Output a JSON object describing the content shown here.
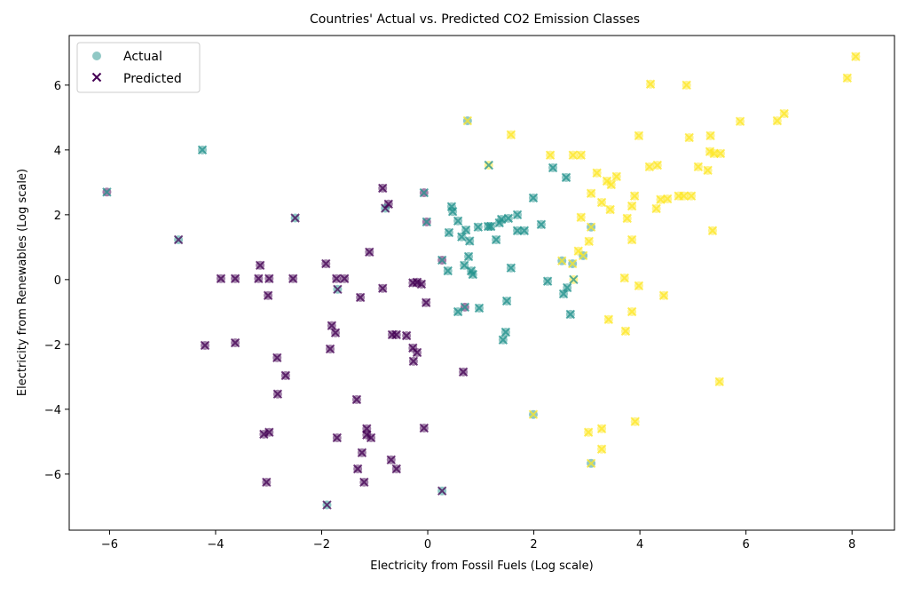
{
  "chart_data": {
    "type": "scatter",
    "title": "Countries' Actual vs. Predicted CO2 Emission Classes",
    "xlabel": "Electricity from Fossil Fuels (Log scale)",
    "ylabel": "Electricity from Renewables (Log scale)",
    "xlim": [
      -6.76,
      8.8
    ],
    "ylim": [
      -7.73,
      7.53
    ],
    "xticks": [
      -6,
      -4,
      -2,
      0,
      2,
      4,
      6,
      8
    ],
    "yticks": [
      -6,
      -4,
      -2,
      0,
      2,
      4,
      6
    ],
    "grid": false,
    "legend": {
      "placement": "top-left",
      "entries": [
        {
          "label": "Actual",
          "marker": "circle"
        },
        {
          "label": "Predicted",
          "marker": "x"
        }
      ]
    },
    "class_colors": [
      "#440154",
      "#21918c",
      "#fde725"
    ],
    "point_fields": [
      "x",
      "y",
      "actual_class",
      "predicted_class"
    ],
    "points": [
      [
        -4.2,
        -2.03,
        0,
        0
      ],
      [
        -3.9,
        0.03,
        0,
        0
      ],
      [
        -3.63,
        0.03,
        0,
        0
      ],
      [
        -3.63,
        -1.95,
        0,
        0
      ],
      [
        -3.16,
        0.44,
        0,
        0
      ],
      [
        -3.19,
        0.03,
        0,
        0
      ],
      [
        -2.99,
        0.03,
        0,
        0
      ],
      [
        -3.01,
        -0.49,
        0,
        0
      ],
      [
        -2.54,
        0.03,
        0,
        0
      ],
      [
        -1.92,
        0.49,
        0,
        0
      ],
      [
        -1.72,
        0.03,
        0,
        0
      ],
      [
        -1.57,
        0.03,
        0,
        0
      ],
      [
        -1.1,
        0.85,
        0,
        0
      ],
      [
        -0.85,
        2.82,
        0,
        0
      ],
      [
        -0.74,
        2.33,
        0,
        0
      ],
      [
        -1.27,
        -0.55,
        0,
        0
      ],
      [
        -0.85,
        -0.27,
        0,
        0
      ],
      [
        -1.81,
        -1.42,
        0,
        0
      ],
      [
        -1.74,
        -1.64,
        0,
        0
      ],
      [
        -1.84,
        -2.14,
        0,
        0
      ],
      [
        -0.67,
        -1.7,
        0,
        0
      ],
      [
        -0.59,
        -1.7,
        0,
        0
      ],
      [
        -0.4,
        -1.73,
        0,
        0
      ],
      [
        -0.28,
        -2.11,
        0,
        0
      ],
      [
        -0.2,
        -2.25,
        0,
        0
      ],
      [
        -0.27,
        -2.52,
        0,
        0
      ],
      [
        -0.2,
        -0.08,
        0,
        0
      ],
      [
        -0.12,
        -0.14,
        0,
        0
      ],
      [
        -0.28,
        -0.1,
        0,
        0
      ],
      [
        -0.03,
        -0.71,
        0,
        0
      ],
      [
        -2.84,
        -2.41,
        0,
        0
      ],
      [
        -2.68,
        -2.96,
        0,
        0
      ],
      [
        -2.83,
        -3.53,
        0,
        0
      ],
      [
        -3.09,
        -4.77,
        0,
        0
      ],
      [
        -2.99,
        -4.71,
        0,
        0
      ],
      [
        -3.04,
        -6.25,
        0,
        0
      ],
      [
        -1.71,
        -4.88,
        0,
        0
      ],
      [
        -1.34,
        -3.7,
        0,
        0
      ],
      [
        -1.15,
        -4.6,
        0,
        0
      ],
      [
        -1.15,
        -4.79,
        0,
        0
      ],
      [
        -1.07,
        -4.88,
        0,
        0
      ],
      [
        -1.24,
        -5.34,
        0,
        0
      ],
      [
        -1.32,
        -5.84,
        0,
        0
      ],
      [
        -1.2,
        -6.25,
        0,
        0
      ],
      [
        -0.69,
        -5.56,
        0,
        0
      ],
      [
        -0.59,
        -5.84,
        0,
        0
      ],
      [
        -0.07,
        -4.58,
        0,
        0
      ],
      [
        0.67,
        -2.85,
        0,
        0
      ],
      [
        -4.7,
        1.23,
        1,
        0
      ],
      [
        -2.5,
        1.9,
        1,
        0
      ],
      [
        -1.7,
        -0.3,
        1,
        0
      ],
      [
        -1.9,
        -6.95,
        1,
        0
      ],
      [
        0.27,
        -6.52,
        1,
        0
      ],
      [
        -0.8,
        2.2,
        1,
        0
      ],
      [
        -0.07,
        2.68,
        0,
        1
      ],
      [
        -0.02,
        1.78,
        0,
        1
      ],
      [
        0.27,
        0.6,
        0,
        1
      ],
      [
        0.7,
        -0.85,
        0,
        1
      ],
      [
        -6.05,
        2.7,
        0,
        1
      ],
      [
        -4.25,
        4.0,
        1,
        1
      ],
      [
        0.45,
        2.25,
        1,
        1
      ],
      [
        0.47,
        2.1,
        1,
        1
      ],
      [
        0.57,
        1.81,
        1,
        1
      ],
      [
        0.4,
        1.45,
        1,
        1
      ],
      [
        0.64,
        1.32,
        1,
        1
      ],
      [
        0.72,
        1.53,
        1,
        1
      ],
      [
        0.79,
        1.19,
        1,
        1
      ],
      [
        0.95,
        1.62,
        1,
        1
      ],
      [
        1.14,
        1.64,
        1,
        1
      ],
      [
        1.19,
        1.64,
        1,
        1
      ],
      [
        1.35,
        1.75,
        1,
        1
      ],
      [
        1.39,
        1.86,
        1,
        1
      ],
      [
        1.52,
        1.89,
        1,
        1
      ],
      [
        1.69,
        2.0,
        1,
        1
      ],
      [
        1.29,
        1.23,
        1,
        1
      ],
      [
        1.69,
        1.51,
        1,
        1
      ],
      [
        1.82,
        1.51,
        1,
        1
      ],
      [
        2.14,
        1.7,
        1,
        1
      ],
      [
        1.99,
        2.52,
        1,
        1
      ],
      [
        2.36,
        3.45,
        1,
        1
      ],
      [
        2.61,
        3.15,
        1,
        1
      ],
      [
        0.77,
        0.71,
        1,
        1
      ],
      [
        0.69,
        0.44,
        1,
        1
      ],
      [
        0.82,
        0.27,
        1,
        1
      ],
      [
        0.85,
        0.16,
        1,
        1
      ],
      [
        0.38,
        0.27,
        1,
        1
      ],
      [
        1.57,
        0.36,
        1,
        1
      ],
      [
        2.26,
        -0.05,
        1,
        1
      ],
      [
        2.63,
        -0.25,
        1,
        1
      ],
      [
        2.56,
        -0.44,
        1,
        1
      ],
      [
        2.69,
        -1.07,
        1,
        1
      ],
      [
        1.49,
        -0.66,
        1,
        1
      ],
      [
        0.57,
        -0.99,
        1,
        1
      ],
      [
        0.97,
        -0.88,
        1,
        1
      ],
      [
        1.47,
        -1.62,
        1,
        1
      ],
      [
        1.42,
        -1.86,
        1,
        1
      ],
      [
        1.15,
        3.53,
        2,
        1
      ],
      [
        2.75,
        0.0,
        2,
        1
      ],
      [
        0.75,
        4.9,
        1,
        2
      ],
      [
        3.08,
        1.62,
        1,
        2
      ],
      [
        2.53,
        0.58,
        1,
        2
      ],
      [
        2.73,
        0.49,
        1,
        2
      ],
      [
        2.93,
        0.74,
        1,
        2
      ],
      [
        1.99,
        -4.16,
        1,
        2
      ],
      [
        3.08,
        -5.67,
        1,
        2
      ],
      [
        1.57,
        4.47,
        2,
        2
      ],
      [
        4.2,
        6.03,
        2,
        2
      ],
      [
        4.88,
        6.0,
        2,
        2
      ],
      [
        8.07,
        6.88,
        2,
        2
      ],
      [
        7.91,
        6.22,
        2,
        2
      ],
      [
        5.89,
        4.88,
        2,
        2
      ],
      [
        6.72,
        5.12,
        2,
        2
      ],
      [
        6.59,
        4.9,
        2,
        2
      ],
      [
        5.33,
        4.44,
        2,
        2
      ],
      [
        4.93,
        4.38,
        2,
        2
      ],
      [
        3.98,
        4.44,
        2,
        2
      ],
      [
        2.31,
        3.84,
        2,
        2
      ],
      [
        2.89,
        3.84,
        2,
        2
      ],
      [
        2.74,
        3.84,
        2,
        2
      ],
      [
        3.19,
        3.29,
        2,
        2
      ],
      [
        3.38,
        3.04,
        2,
        2
      ],
      [
        3.46,
        2.93,
        2,
        2
      ],
      [
        3.56,
        3.18,
        2,
        2
      ],
      [
        3.9,
        2.58,
        2,
        2
      ],
      [
        4.18,
        3.48,
        2,
        2
      ],
      [
        4.33,
        3.53,
        2,
        2
      ],
      [
        5.32,
        3.95,
        2,
        2
      ],
      [
        5.4,
        3.89,
        2,
        2
      ],
      [
        5.52,
        3.89,
        2,
        2
      ],
      [
        5.1,
        3.48,
        2,
        2
      ],
      [
        5.28,
        3.37,
        2,
        2
      ],
      [
        3.08,
        2.66,
        2,
        2
      ],
      [
        3.28,
        2.38,
        2,
        2
      ],
      [
        3.44,
        2.16,
        2,
        2
      ],
      [
        2.89,
        1.92,
        2,
        2
      ],
      [
        3.04,
        1.18,
        2,
        2
      ],
      [
        3.76,
        1.89,
        2,
        2
      ],
      [
        3.85,
        2.27,
        2,
        2
      ],
      [
        3.85,
        1.23,
        2,
        2
      ],
      [
        4.31,
        2.19,
        2,
        2
      ],
      [
        4.39,
        2.47,
        2,
        2
      ],
      [
        4.52,
        2.49,
        2,
        2
      ],
      [
        4.73,
        2.58,
        2,
        2
      ],
      [
        4.83,
        2.58,
        2,
        2
      ],
      [
        4.97,
        2.58,
        2,
        2
      ],
      [
        5.37,
        1.51,
        2,
        2
      ],
      [
        2.84,
        0.88,
        2,
        2
      ],
      [
        3.71,
        0.05,
        2,
        2
      ],
      [
        3.98,
        -0.19,
        2,
        2
      ],
      [
        4.45,
        -0.49,
        2,
        2
      ],
      [
        3.41,
        -1.23,
        2,
        2
      ],
      [
        3.85,
        -0.99,
        2,
        2
      ],
      [
        3.73,
        -1.59,
        2,
        2
      ],
      [
        5.5,
        -3.15,
        2,
        2
      ],
      [
        3.91,
        -4.38,
        2,
        2
      ],
      [
        3.03,
        -4.71,
        2,
        2
      ],
      [
        3.28,
        -4.6,
        2,
        2
      ],
      [
        3.28,
        -5.23,
        2,
        2
      ]
    ]
  }
}
